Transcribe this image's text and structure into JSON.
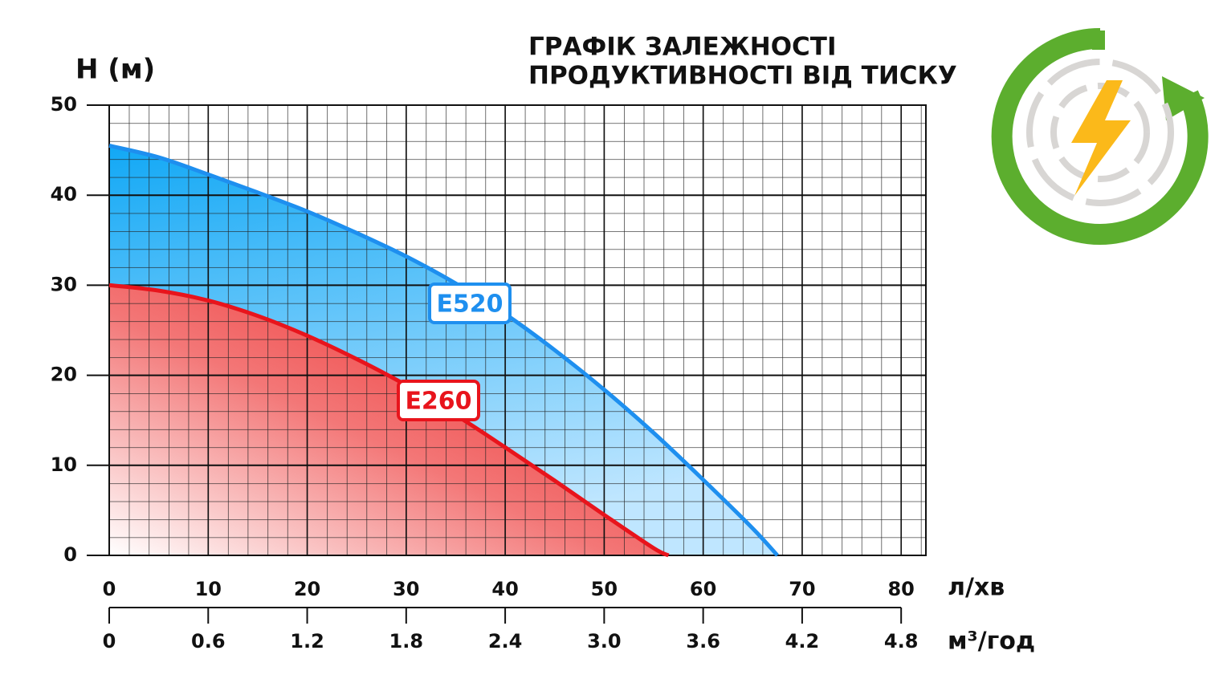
{
  "chart_data": {
    "type": "area",
    "title": [
      "ГРАФІК ЗАЛЕЖНОСТІ",
      "ПРОДУКТИВНОСТІ ВІД ТИСКУ"
    ],
    "y_label": "H (м)",
    "x_label": "л/хв",
    "x2_label": "м³/год",
    "xlim": [
      0,
      82.5
    ],
    "xticks": [
      0,
      10,
      20,
      30,
      40,
      50,
      60,
      70,
      80
    ],
    "x2lim": [
      0,
      4.95
    ],
    "x2ticks": [
      0,
      0.6,
      1.2,
      1.8,
      2.4,
      {
        "value": 3,
        "label": "3.0"
      },
      3.6,
      4.2,
      4.8
    ],
    "ylim": [
      0,
      50
    ],
    "yticks": [
      0,
      10,
      20,
      30,
      40,
      50
    ],
    "grid": true,
    "series": [
      {
        "name": "E520",
        "color": "#1e8fef",
        "x": [
          0,
          5,
          10,
          15,
          20,
          25,
          30,
          35,
          40,
          45,
          50,
          55,
          60,
          65,
          67.5
        ],
        "values": [
          45.5,
          44.2,
          42.3,
          40.3,
          38.2,
          35.8,
          33.2,
          30.2,
          26.8,
          22.8,
          18.4,
          13.6,
          8.4,
          3,
          0
        ]
      },
      {
        "name": "E260",
        "color": "#e8141c",
        "x": [
          0,
          5,
          10,
          15,
          20,
          25,
          30,
          35,
          40,
          45,
          50,
          55,
          56.5
        ],
        "values": [
          30,
          29.4,
          28.3,
          26.6,
          24.4,
          21.8,
          18.9,
          15.6,
          12,
          8.3,
          4.5,
          0.8,
          0
        ]
      }
    ]
  }
}
